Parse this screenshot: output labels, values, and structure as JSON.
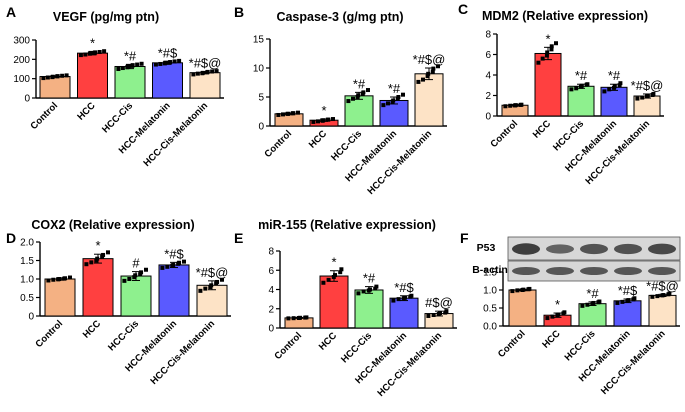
{
  "colors": {
    "control": "#f4b183",
    "hcc": "#ff4040",
    "cis": "#8ef08e",
    "mel": "#5a5aff",
    "cismel": "#fde3c6",
    "point": "#000000",
    "blot_bg": "#d7d7d7",
    "blot_band": "#2b2b2b"
  },
  "chart_data": [
    {
      "panel": "A",
      "type": "bar",
      "title": "VEGF (pg/mg ptn)",
      "categories": [
        "Control",
        "HCC",
        "HCC-Cis",
        "HCC-Melatonin",
        "HCC-Cis-Melatonin"
      ],
      "values": [
        111,
        232,
        163,
        182,
        131
      ],
      "errors": [
        4,
        9,
        11,
        8,
        6
      ],
      "points": [
        [
          103,
          106,
          108,
          110,
          112,
          113,
          115,
          117
        ],
        [
          222,
          225,
          229,
          231,
          234,
          236,
          238,
          242
        ],
        [
          150,
          155,
          159,
          163,
          166,
          170,
          173,
          177
        ],
        [
          173,
          176,
          179,
          182,
          184,
          186,
          189,
          192
        ],
        [
          122,
          126,
          128,
          130,
          133,
          135,
          137,
          139
        ]
      ],
      "significance": [
        "",
        "*",
        "*#",
        "*#$",
        "*#$@"
      ],
      "ylim": [
        0,
        300
      ],
      "yticks": [
        "0",
        "100",
        "200",
        "300"
      ]
    },
    {
      "panel": "B",
      "type": "bar",
      "title": "Caspase-3 (g/mg ptn)",
      "categories": [
        "Control",
        "HCC",
        "HCC-Cis",
        "HCC-Melatonin",
        "HCC-Cis-Melatonin"
      ],
      "values": [
        2.1,
        1.0,
        5.2,
        4.4,
        9.0
      ],
      "errors": [
        0.15,
        0.2,
        0.6,
        0.6,
        1.0
      ],
      "points": [
        [
          1.9,
          2.0,
          2.1,
          2.1,
          2.2,
          2.2,
          2.3
        ],
        [
          0.7,
          0.8,
          0.9,
          1.0,
          1.1,
          1.1,
          1.2
        ],
        [
          4.3,
          4.7,
          5.0,
          5.3,
          5.6,
          5.8,
          6.2
        ],
        [
          3.6,
          3.9,
          4.2,
          4.4,
          4.7,
          5.0,
          5.4
        ],
        [
          7.6,
          8.0,
          8.6,
          9.0,
          9.4,
          9.9,
          10.3
        ]
      ],
      "significance": [
        "",
        "*",
        "*#",
        "*#",
        "*#$@"
      ],
      "ylim": [
        0,
        15
      ],
      "yticks": [
        "0",
        "5",
        "10",
        "15"
      ]
    },
    {
      "panel": "C",
      "type": "bar",
      "title": "MDM2 (Relative expression)",
      "categories": [
        "Control",
        "HCC",
        "HCC-Cis",
        "HCC-Melatonin",
        "HCC-Cis-Melatonin"
      ],
      "values": [
        1.05,
        6.1,
        2.9,
        2.8,
        1.95
      ],
      "errors": [
        0.08,
        0.6,
        0.2,
        0.3,
        0.2
      ],
      "points": [
        [
          0.95,
          1.0,
          1.03,
          1.06,
          1.08,
          1.1
        ],
        [
          5.2,
          5.6,
          5.9,
          6.2,
          6.5,
          6.8,
          7.1
        ],
        [
          2.6,
          2.7,
          2.85,
          2.95,
          3.05,
          3.1
        ],
        [
          2.4,
          2.6,
          2.75,
          2.9,
          3.0,
          3.2
        ],
        [
          1.7,
          1.8,
          1.9,
          2.0,
          2.05,
          2.15
        ]
      ],
      "significance": [
        "",
        "*",
        "*#",
        "*#",
        "*#$@"
      ],
      "ylim": [
        0,
        8
      ],
      "yticks": [
        "0",
        "2",
        "4",
        "6",
        "8"
      ]
    },
    {
      "panel": "D",
      "type": "bar",
      "title": "COX2 (Relative expression)",
      "categories": [
        "Control",
        "HCC",
        "HCC-Cis",
        "HCC-Melatonin",
        "HCC-Cis-Melatonin"
      ],
      "values": [
        1.0,
        1.55,
        1.08,
        1.38,
        0.83
      ],
      "errors": [
        0.03,
        0.12,
        0.12,
        0.07,
        0.12
      ],
      "points": [
        [
          0.96,
          0.98,
          0.99,
          1.0,
          1.01,
          1.02,
          1.04
        ],
        [
          1.4,
          1.45,
          1.5,
          1.55,
          1.6,
          1.65,
          1.72
        ],
        [
          0.95,
          1.0,
          1.05,
          1.1,
          1.13,
          1.18,
          1.25
        ],
        [
          1.3,
          1.33,
          1.36,
          1.38,
          1.41,
          1.44,
          1.47
        ],
        [
          0.68,
          0.74,
          0.78,
          0.83,
          0.88,
          0.92,
          0.98
        ]
      ],
      "significance": [
        "",
        "*",
        "#",
        "*#$",
        "*#$@"
      ],
      "ylim": [
        0,
        2.0
      ],
      "yticks": [
        "0",
        "0.5",
        "1.0",
        "1.5",
        "2.0"
      ]
    },
    {
      "panel": "E",
      "type": "bar",
      "title": "miR-155 (Relative expression)",
      "categories": [
        "Control",
        "HCC",
        "HCC-Cis",
        "HCC-Melatonin",
        "HCC-Cis-Melatonin"
      ],
      "values": [
        1.05,
        5.4,
        3.95,
        3.1,
        1.5
      ],
      "errors": [
        0.05,
        0.55,
        0.35,
        0.25,
        0.25
      ],
      "points": [
        [
          1.0,
          1.02,
          1.04,
          1.06,
          1.08,
          1.1
        ],
        [
          4.7,
          5.0,
          5.3,
          5.5,
          5.8,
          6.1
        ],
        [
          3.6,
          3.8,
          3.9,
          4.0,
          4.1,
          4.3
        ],
        [
          2.85,
          3.0,
          3.1,
          3.15,
          3.25,
          3.35
        ],
        [
          1.25,
          1.35,
          1.45,
          1.55,
          1.6,
          1.75
        ]
      ],
      "significance": [
        "",
        "*",
        "*#",
        "*#$",
        "#$@"
      ],
      "ylim": [
        0,
        8
      ],
      "yticks": [
        "0",
        "2",
        "4",
        "6",
        "8"
      ]
    },
    {
      "panel": "F",
      "type": "bar",
      "title": "P53 / B-actin",
      "blot_labels": [
        "P53",
        "B-actin"
      ],
      "categories": [
        "Control",
        "HCC",
        "HCC-Cis",
        "HCC-Melatonin",
        "HCC-Cis-Melatonin"
      ],
      "values": [
        1.0,
        0.3,
        0.62,
        0.7,
        0.85
      ],
      "errors": [
        0.02,
        0.06,
        0.05,
        0.05,
        0.03
      ],
      "points": [
        [
          0.97,
          0.99,
          1.0,
          1.01,
          1.02,
          1.03
        ],
        [
          0.22,
          0.26,
          0.3,
          0.32,
          0.35,
          0.38
        ],
        [
          0.56,
          0.59,
          0.62,
          0.64,
          0.66,
          0.68
        ],
        [
          0.64,
          0.67,
          0.7,
          0.72,
          0.74,
          0.77
        ],
        [
          0.81,
          0.83,
          0.85,
          0.86,
          0.88,
          0.9
        ]
      ],
      "significance": [
        "",
        "*",
        "*#",
        "*#$",
        "*#$@"
      ],
      "ylim": [
        0,
        1.5
      ],
      "yticks": [
        "0.0",
        "0.5",
        "1.0",
        "1.5"
      ]
    }
  ]
}
